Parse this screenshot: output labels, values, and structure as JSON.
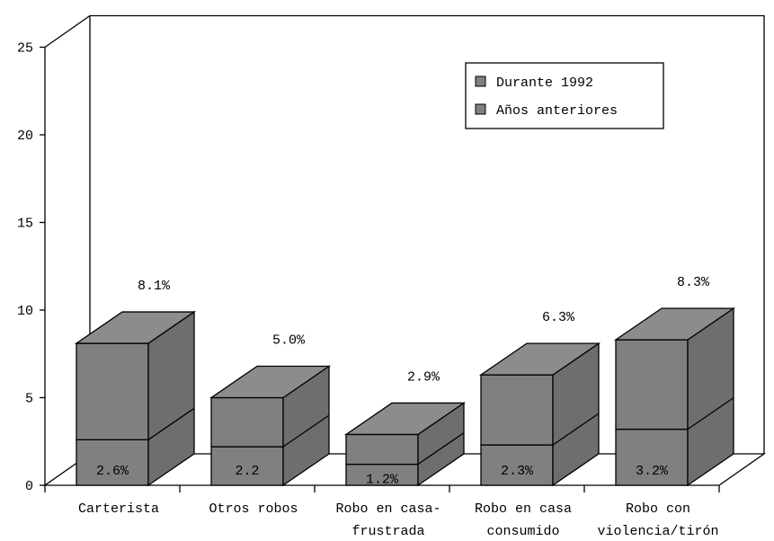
{
  "colors": {
    "bar_front": "#808080",
    "bar_top": "#8c8c8c",
    "bar_side": "#6e6e6e",
    "outline": "#000000",
    "background": "#ffffff"
  },
  "chart_data": {
    "type": "bar",
    "stacked": true,
    "three_d": true,
    "categories": [
      [
        "Carterista"
      ],
      [
        "Otros robos"
      ],
      [
        "Robo en casa-",
        "frustrada"
      ],
      [
        "Robo en casa",
        "consumido"
      ],
      [
        "Robo con",
        "violencia/tirón"
      ]
    ],
    "series": [
      {
        "name": "Años anteriores",
        "values": [
          2.6,
          2.2,
          1.2,
          2.3,
          3.2
        ]
      },
      {
        "name": "Durante 1992",
        "values": [
          5.5,
          2.8,
          1.7,
          4.0,
          5.1
        ]
      }
    ],
    "totals": [
      8.1,
      5.0,
      2.9,
      6.3,
      8.3
    ],
    "bottom_labels": [
      "2.6%",
      "2.2",
      "1.2%",
      "2.3%",
      "3.2%"
    ],
    "total_labels": [
      "8.1%",
      "5.0%",
      "2.9%",
      "6.3%",
      "8.3%"
    ],
    "y_ticks": [
      "0",
      "5",
      "10",
      "15",
      "20",
      "25"
    ],
    "ylim": [
      0,
      25
    ],
    "legend": {
      "position": "top-right",
      "entries": [
        "Durante 1992",
        "Años anteriores"
      ]
    },
    "grid": false
  }
}
